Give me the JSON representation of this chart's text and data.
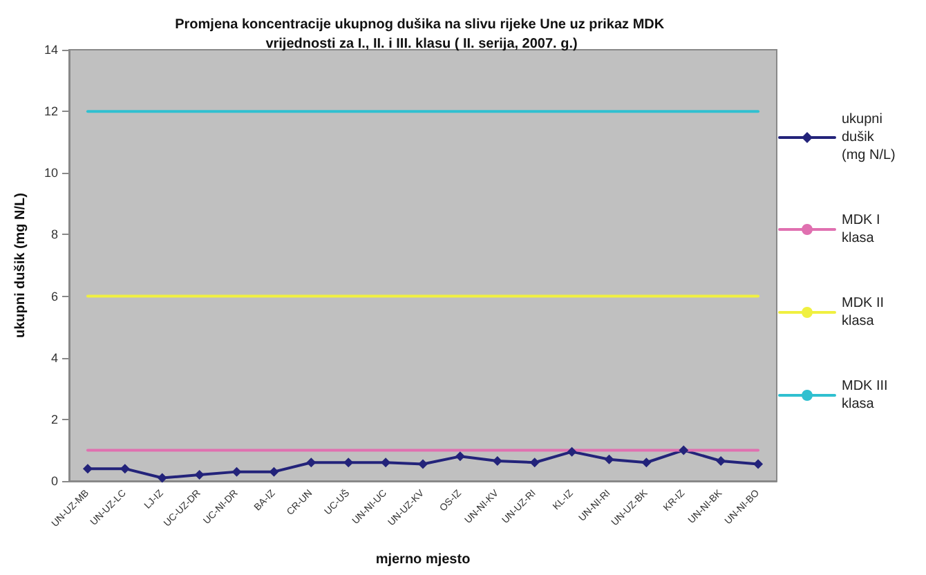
{
  "chart_data": {
    "type": "line",
    "title": "Promjena koncentracije ukupnog dušika na slivu rijeke Une uz prikaz MDK vrijednosti za I., II. i III. klasu ( II. serija, 2007. g.)",
    "xlabel": "mjerno mjesto",
    "ylabel": "ukupni dušik (mg N/L)",
    "categories": [
      "UN-UZ-MB",
      "UN-UZ-LC",
      "LJ-IZ",
      "UC-UZ-DR",
      "UC-NI-DR",
      "BA-IZ",
      "CR-UN",
      "UC-UŠ",
      "UN-NI-UC",
      "UN-UZ-KV",
      "OS-IZ",
      "UN-NI-KV",
      "UN-UZ-RI",
      "KL-IZ",
      "UN-NI-RI",
      "UN-UZ-BK",
      "KR-IZ",
      "UN-NI-BK",
      "UN-NI-BO"
    ],
    "series": [
      {
        "name": "ukupni dušik (mg N/L)",
        "color": "#23237a",
        "marker": "diamond",
        "values": [
          0.4,
          0.4,
          0.1,
          0.2,
          0.3,
          0.3,
          0.6,
          0.6,
          0.6,
          0.55,
          0.8,
          0.65,
          0.6,
          0.95,
          0.7,
          0.6,
          1.0,
          0.65,
          0.55
        ]
      },
      {
        "name": "MDK I klasa",
        "color": "#e070b0",
        "marker": "none",
        "values": [
          1,
          1,
          1,
          1,
          1,
          1,
          1,
          1,
          1,
          1,
          1,
          1,
          1,
          1,
          1,
          1,
          1,
          1,
          1
        ]
      },
      {
        "name": "MDK II klasa",
        "color": "#f0f040",
        "marker": "none",
        "values": [
          6,
          6,
          6,
          6,
          6,
          6,
          6,
          6,
          6,
          6,
          6,
          6,
          6,
          6,
          6,
          6,
          6,
          6,
          6
        ]
      },
      {
        "name": "MDK III klasa",
        "color": "#30c0d0",
        "marker": "none",
        "values": [
          12,
          12,
          12,
          12,
          12,
          12,
          12,
          12,
          12,
          12,
          12,
          12,
          12,
          12,
          12,
          12,
          12,
          12,
          12
        ]
      }
    ],
    "ylim": [
      0,
      14
    ],
    "yticks": [
      0,
      2,
      4,
      6,
      8,
      10,
      12,
      14
    ],
    "grid": false,
    "legend": "right"
  }
}
